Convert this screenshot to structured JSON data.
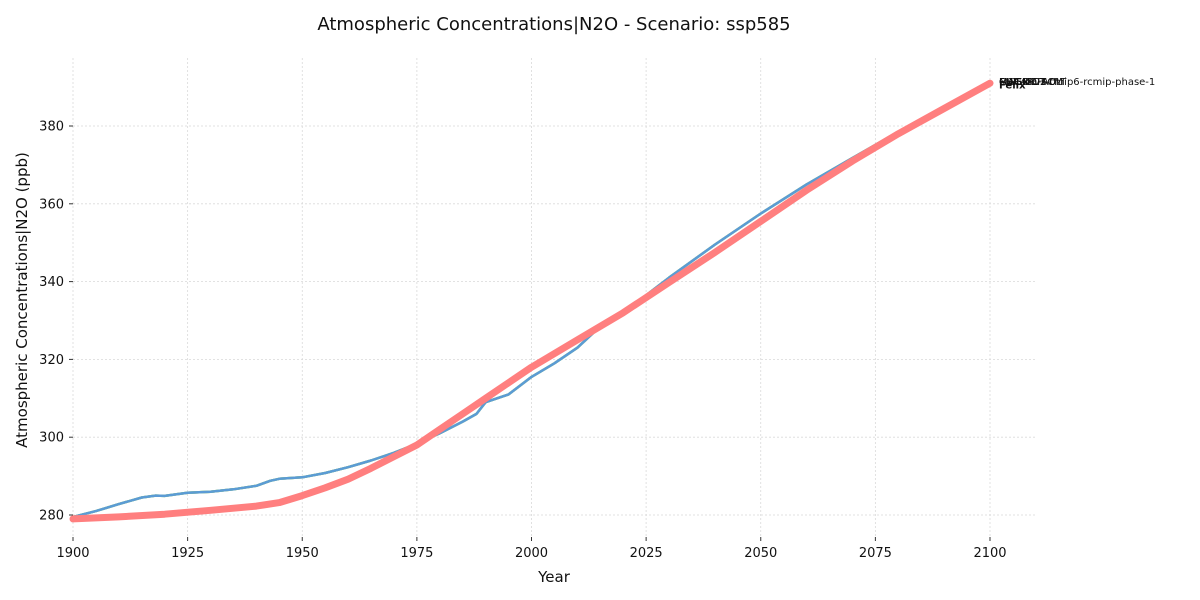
{
  "chart_data": {
    "type": "line",
    "title": "Atmospheric Concentrations|N2O - Scenario: ssp585",
    "xlabel": "Year",
    "ylabel": "Atmospheric Concentrations|N2O (ppb)",
    "xlim": [
      1900,
      2110
    ],
    "ylim": [
      274,
      398
    ],
    "xticks": [
      1900,
      1925,
      1950,
      1975,
      2000,
      2025,
      2050,
      2075,
      2100
    ],
    "yticks": [
      280,
      300,
      320,
      340,
      360,
      380
    ],
    "grid": true,
    "series": [
      {
        "name": "Felix",
        "color": "#ff7f7f",
        "x": [
          1900,
          1910,
          1920,
          1930,
          1940,
          1945,
          1950,
          1955,
          1960,
          1965,
          1970,
          1975,
          1980,
          1985,
          1990,
          2000,
          2010,
          2020,
          2030,
          2040,
          2050,
          2060,
          2070,
          2080,
          2090,
          2100
        ],
        "y": [
          279.0,
          279.5,
          280.2,
          281.2,
          282.3,
          283.2,
          285.0,
          287.0,
          289.2,
          292.0,
          295.0,
          298.0,
          302.0,
          306.0,
          310.0,
          318.0,
          325.0,
          332.0,
          339.8,
          347.5,
          355.5,
          363.5,
          371.0,
          378.0,
          384.5,
          391.0
        ]
      },
      {
        "name": "FaIR-DEFAULT",
        "color": "#5b9bd5",
        "x": [
          1900,
          1905,
          1910,
          1915,
          1918,
          1920,
          1925,
          1930,
          1935,
          1940,
          1943,
          1945,
          1950,
          1955,
          1960,
          1965,
          1970,
          1975,
          1980,
          1985,
          1988,
          1990,
          1995,
          2000,
          2005,
          2010,
          2015,
          2020,
          2025,
          2030,
          2040,
          2050,
          2060,
          2070,
          2080,
          2090,
          2100
        ],
        "y": [
          279.5,
          281.0,
          282.8,
          284.5,
          285.0,
          284.9,
          285.7,
          286.0,
          286.6,
          287.5,
          288.8,
          289.3,
          289.7,
          290.8,
          292.3,
          294.0,
          296.0,
          298.3,
          301.0,
          304.0,
          306.0,
          309.0,
          311.0,
          315.5,
          319.0,
          323.0,
          328.5,
          332.0,
          336.5,
          341.0,
          349.5,
          357.5,
          365.0,
          371.8,
          378.5,
          385.0,
          391.5
        ]
      },
      {
        "name": "MAGICC7",
        "color": "#9bd17f",
        "x": [
          1900,
          1905,
          1910,
          1915,
          1918,
          1920,
          1925,
          1930,
          1935,
          1940,
          1943,
          1945,
          1950,
          1955,
          1960,
          1965,
          1970,
          1975,
          1980,
          1985,
          1988,
          1990,
          1995,
          2000,
          2005,
          2010,
          2015,
          2020,
          2025,
          2030,
          2040,
          2050,
          2060,
          2070,
          2080,
          2090,
          2100
        ],
        "y": [
          279.5,
          281.0,
          282.8,
          284.5,
          285.0,
          284.9,
          285.7,
          286.0,
          286.6,
          287.5,
          288.8,
          289.3,
          289.7,
          290.8,
          292.3,
          294.0,
          296.0,
          298.3,
          301.0,
          304.0,
          306.0,
          309.0,
          311.0,
          315.5,
          319.0,
          323.0,
          328.5,
          332.0,
          336.5,
          341.0,
          349.5,
          357.5,
          365.0,
          371.8,
          378.5,
          385.0,
          391.5
        ]
      },
      {
        "name": "OSCARv3.0",
        "color": "#b8d86b",
        "x": [
          1900,
          1905,
          1910,
          1915,
          1918,
          1920,
          1925,
          1930,
          1935,
          1940,
          1943,
          1945,
          1950,
          1955,
          1960,
          1965,
          1970,
          1975,
          1980,
          1985,
          1988,
          1990,
          1995,
          2000,
          2005,
          2010,
          2015,
          2020,
          2025,
          2030,
          2040,
          2050,
          2060,
          2070,
          2080,
          2090,
          2100
        ],
        "y": [
          279.5,
          281.0,
          282.8,
          284.5,
          285.0,
          284.9,
          285.7,
          286.0,
          286.6,
          287.5,
          288.8,
          289.3,
          289.7,
          290.8,
          292.3,
          294.0,
          296.0,
          298.3,
          301.0,
          304.0,
          306.0,
          309.0,
          311.0,
          315.5,
          319.0,
          323.0,
          328.5,
          332.0,
          336.5,
          341.0,
          349.5,
          357.5,
          365.0,
          371.8,
          378.5,
          385.0,
          391.5
        ]
      },
      {
        "name": "CICERO-SCM",
        "color": "#7fbf9f",
        "x": [
          1900,
          1905,
          1910,
          1915,
          1918,
          1920,
          1925,
          1930,
          1935,
          1940,
          1943,
          1945,
          1950,
          1955,
          1960,
          1965,
          1970,
          1975,
          1980,
          1985,
          1988,
          1990,
          1995,
          2000,
          2005,
          2010,
          2015,
          2020,
          2025,
          2030,
          2040,
          2050,
          2060,
          2070,
          2080,
          2090,
          2100
        ],
        "y": [
          279.5,
          281.0,
          282.8,
          284.5,
          285.0,
          284.9,
          285.7,
          286.0,
          286.6,
          287.5,
          288.8,
          289.3,
          289.7,
          290.8,
          292.3,
          294.0,
          296.0,
          298.3,
          301.0,
          304.0,
          306.0,
          309.0,
          311.0,
          315.5,
          319.0,
          323.0,
          328.5,
          332.0,
          336.5,
          341.0,
          349.5,
          357.5,
          365.0,
          371.8,
          378.5,
          385.0,
          391.5
        ]
      },
      {
        "name": "MAGICC7-cmip6-rcmip-phase-1",
        "color": "#a6a6a6",
        "x": [
          1900,
          1905,
          1910,
          1915,
          1918,
          1920,
          1925,
          1930,
          1935,
          1940,
          1943,
          1945,
          1950,
          1955,
          1960,
          1965,
          1970,
          1975,
          1980,
          1985,
          1988,
          1990,
          1995,
          2000,
          2005,
          2010,
          2015,
          2020,
          2025,
          2030,
          2040,
          2050,
          2060,
          2070,
          2080,
          2090,
          2100
        ],
        "y": [
          279.5,
          281.0,
          282.8,
          284.5,
          285.0,
          284.9,
          285.7,
          286.0,
          286.6,
          287.5,
          288.8,
          289.3,
          289.7,
          290.8,
          292.3,
          294.0,
          296.0,
          298.3,
          301.0,
          304.0,
          306.0,
          309.0,
          311.0,
          315.5,
          319.0,
          323.0,
          328.5,
          332.0,
          336.5,
          341.0,
          349.5,
          357.5,
          365.0,
          371.8,
          378.5,
          385.0,
          391.5
        ]
      }
    ]
  }
}
